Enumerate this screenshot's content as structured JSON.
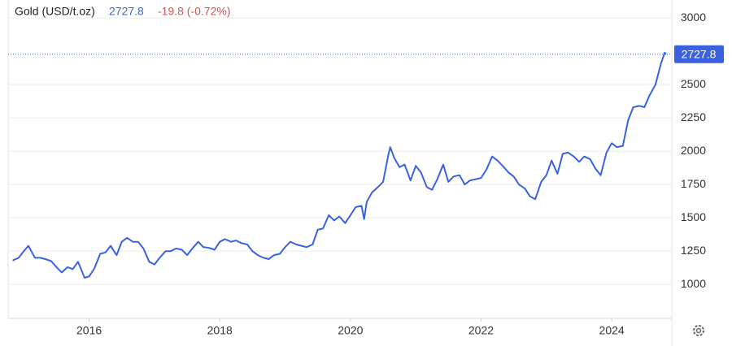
{
  "chart_data": {
    "type": "line",
    "title": "Gold (USD/t.oz)",
    "current_price": 2727.8,
    "change_label": "-19.8 (-0.72%)",
    "series": [
      {
        "name": "Gold",
        "color": "#3a62e0",
        "x": [
          2014.83,
          2014.92,
          2015.0,
          2015.07,
          2015.17,
          2015.25,
          2015.33,
          2015.42,
          2015.5,
          2015.58,
          2015.67,
          2015.75,
          2015.83,
          2015.93,
          2016.0,
          2016.08,
          2016.17,
          2016.25,
          2016.33,
          2016.42,
          2016.5,
          2016.58,
          2016.67,
          2016.75,
          2016.83,
          2016.92,
          2017.0,
          2017.08,
          2017.17,
          2017.25,
          2017.33,
          2017.42,
          2017.5,
          2017.58,
          2017.67,
          2017.75,
          2017.83,
          2017.92,
          2018.0,
          2018.08,
          2018.17,
          2018.25,
          2018.33,
          2018.42,
          2018.5,
          2018.58,
          2018.67,
          2018.75,
          2018.83,
          2018.92,
          2019.0,
          2019.08,
          2019.17,
          2019.25,
          2019.33,
          2019.42,
          2019.5,
          2019.58,
          2019.67,
          2019.75,
          2019.83,
          2019.92,
          2020.0,
          2020.08,
          2020.17,
          2020.21,
          2020.25,
          2020.33,
          2020.42,
          2020.5,
          2020.58,
          2020.61,
          2020.67,
          2020.75,
          2020.83,
          2020.92,
          2021.0,
          2021.08,
          2021.17,
          2021.25,
          2021.33,
          2021.42,
          2021.5,
          2021.58,
          2021.67,
          2021.75,
          2021.83,
          2021.92,
          2022.0,
          2022.08,
          2022.17,
          2022.25,
          2022.33,
          2022.42,
          2022.5,
          2022.58,
          2022.67,
          2022.75,
          2022.83,
          2022.92,
          2023.0,
          2023.08,
          2023.17,
          2023.25,
          2023.33,
          2023.42,
          2023.5,
          2023.58,
          2023.67,
          2023.75,
          2023.83,
          2023.92,
          2024.0,
          2024.08,
          2024.17,
          2024.25,
          2024.33,
          2024.42,
          2024.5,
          2024.58,
          2024.67,
          2024.75,
          2024.81,
          2024.83
        ],
        "values": [
          1180,
          1200,
          1250,
          1290,
          1200,
          1200,
          1190,
          1175,
          1130,
          1090,
          1130,
          1115,
          1170,
          1050,
          1060,
          1120,
          1230,
          1240,
          1290,
          1220,
          1320,
          1350,
          1320,
          1320,
          1270,
          1170,
          1150,
          1200,
          1250,
          1250,
          1270,
          1260,
          1220,
          1270,
          1320,
          1280,
          1275,
          1260,
          1320,
          1340,
          1320,
          1330,
          1310,
          1300,
          1250,
          1220,
          1200,
          1190,
          1220,
          1230,
          1280,
          1320,
          1300,
          1290,
          1280,
          1300,
          1410,
          1420,
          1520,
          1480,
          1510,
          1460,
          1520,
          1580,
          1590,
          1490,
          1620,
          1690,
          1730,
          1770,
          1970,
          2030,
          1950,
          1880,
          1900,
          1780,
          1890,
          1840,
          1730,
          1710,
          1790,
          1900,
          1770,
          1810,
          1820,
          1750,
          1780,
          1790,
          1800,
          1860,
          1960,
          1930,
          1890,
          1840,
          1810,
          1750,
          1720,
          1660,
          1640,
          1770,
          1820,
          1930,
          1830,
          1980,
          1990,
          1960,
          1920,
          1960,
          1940,
          1870,
          1820,
          1990,
          2060,
          2030,
          2040,
          2230,
          2330,
          2340,
          2330,
          2420,
          2500,
          2650,
          2740,
          2727.8
        ]
      }
    ],
    "xlim": [
      2014.76,
      2024.92
    ],
    "xticks": [
      2016,
      2018,
      2020,
      2022,
      2024
    ],
    "ylim": [
      745,
      3135
    ],
    "yticks": [
      1000,
      1250,
      1500,
      1750,
      2000,
      2250,
      2500,
      3000
    ],
    "grid": true
  }
}
